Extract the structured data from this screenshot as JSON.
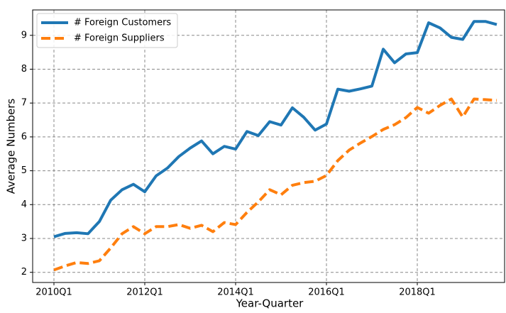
{
  "chart_data": {
    "type": "line",
    "x_label": "Year-Quarter",
    "y_label": "Average Numbers",
    "categories": [
      "2010Q1",
      null,
      null,
      null,
      null,
      null,
      null,
      null,
      "2012Q1",
      null,
      null,
      null,
      null,
      null,
      null,
      null,
      "2014Q1",
      null,
      null,
      null,
      null,
      null,
      null,
      null,
      "2016Q1",
      null,
      null,
      null,
      null,
      null,
      null,
      null,
      "2018Q1",
      null,
      null,
      null,
      null,
      null,
      null,
      null
    ],
    "series": [
      {
        "name": "# Foreign Customers",
        "color": "#1f77b4",
        "dashed": false,
        "values": [
          3.05,
          3.15,
          3.17,
          3.14,
          3.5,
          4.13,
          4.44,
          4.6,
          4.38,
          4.85,
          5.08,
          5.42,
          5.67,
          5.88,
          5.5,
          5.72,
          5.64,
          6.16,
          6.04,
          6.45,
          6.35,
          6.86,
          6.58,
          6.2,
          6.38,
          7.41,
          7.35,
          7.42,
          7.5,
          8.59,
          8.19,
          8.45,
          8.49,
          9.37,
          9.22,
          8.94,
          8.88,
          9.41,
          9.41,
          9.32
        ]
      },
      {
        "name": "# Foreign Suppliers",
        "color": "#ff7f0e",
        "dashed": true,
        "values": [
          2.07,
          2.19,
          2.29,
          2.26,
          2.34,
          2.72,
          3.14,
          3.35,
          3.14,
          3.35,
          3.35,
          3.41,
          3.3,
          3.39,
          3.2,
          3.47,
          3.41,
          3.77,
          4.08,
          4.44,
          4.29,
          4.57,
          4.65,
          4.69,
          4.86,
          5.3,
          5.61,
          5.82,
          6.01,
          6.22,
          6.36,
          6.57,
          6.87,
          6.7,
          6.93,
          7.12,
          6.59,
          7.12,
          7.1,
          7.08
        ]
      }
    ],
    "ylim": [
      1.7,
      9.75
    ],
    "yticks": [
      2,
      3,
      4,
      5,
      6,
      7,
      8,
      9
    ],
    "grid": true,
    "legend": "upper left"
  }
}
